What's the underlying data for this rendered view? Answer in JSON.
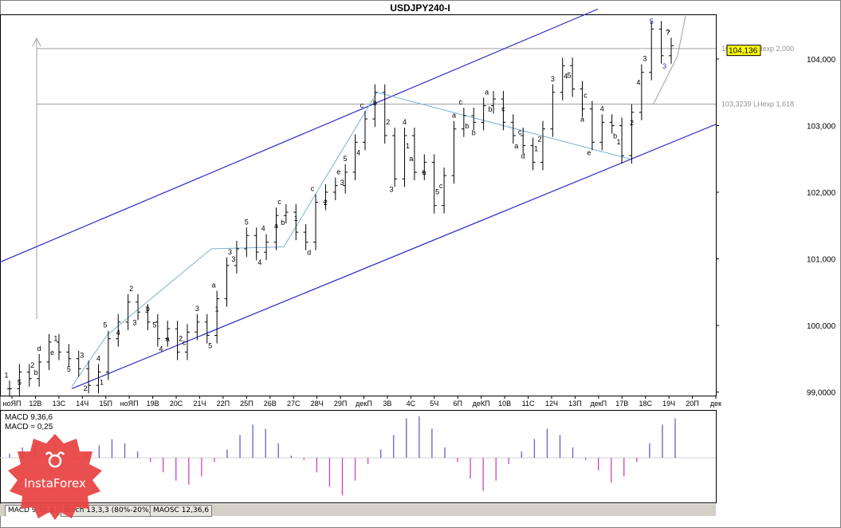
{
  "chart_data": [
    {
      "type": "candlestick",
      "title": "USDJPY240-I",
      "ylim": [
        98.9,
        104.8
      ],
      "y_ticks": [
        "104,000",
        "103,000",
        "102,000",
        "101,000",
        "100,000",
        "99,0000"
      ],
      "current_price": "104,136",
      "x_tick_labels": [
        "ноЯП",
        "12В",
        "13С",
        "14Ч",
        "15П",
        "ноЯП",
        "19В",
        "20С",
        "21Ч",
        "22П",
        "25П",
        "26В",
        "27С",
        "28Ч",
        "29П",
        "декП",
        "3В",
        "4С",
        "5Ч",
        "6П",
        "деКП",
        "10В",
        "11С",
        "12Ч",
        "13П",
        "декП",
        "17В",
        "18С",
        "19Ч",
        "20П",
        "дек"
      ],
      "hlines": [
        {
          "label": "104,1570 LHexp 2,000",
          "value": 104.157
        },
        {
          "label": "103,3239 LHexp 1,618",
          "value": 103.3239
        }
      ],
      "series": [
        {
          "values": [
            99.05,
            99.3,
            99.2,
            99.45,
            99.75,
            99.6,
            99.5,
            99.35,
            99.1,
            99.3,
            99.8,
            100.05,
            100.35,
            100.2,
            100.05,
            99.8,
            99.95,
            99.6,
            99.9,
            100.05,
            99.85,
            100.4,
            100.9,
            101.15,
            101.35,
            101.1,
            101.25,
            101.65,
            101.7,
            101.4,
            101.25,
            101.85,
            102.0,
            102.1,
            102.3,
            102.75,
            103.1,
            103.5,
            102.85,
            102.2,
            102.85,
            102.3,
            102.45,
            101.8,
            102.25,
            102.95,
            103.15,
            103.05,
            103.3,
            103.4,
            103.05,
            102.85,
            102.7,
            102.45,
            102.95,
            103.5,
            103.9,
            103.55,
            103.25,
            102.75,
            103.05,
            103.0,
            102.55,
            103.2,
            103.8,
            104.45,
            104.05,
            104.2
          ]
        }
      ],
      "wave_labels": [
        "1",
        "5",
        "2",
        "b",
        "d",
        "e",
        "1",
        "5",
        "3",
        "2",
        "4",
        "1",
        "5",
        "4",
        "2",
        "3",
        "b",
        "4",
        "5",
        "a",
        "2",
        "c",
        "3",
        "5",
        "a",
        "1",
        "3",
        "3",
        "5",
        "4",
        "4",
        "a",
        "c",
        "b",
        "1",
        "d",
        "c",
        "2",
        "e",
        "3",
        "5",
        "4",
        "c",
        "b",
        "2",
        "3",
        "4",
        "1",
        "a",
        "b",
        "5",
        "c",
        "a",
        "b",
        "c",
        "b",
        "a",
        "b",
        "c",
        "a",
        "c",
        "d",
        "1",
        "2",
        "3",
        "4",
        "5",
        "a",
        "c",
        "e",
        "4",
        "b",
        "1",
        "2",
        "3",
        "4",
        "5",
        "3",
        "?"
      ]
    },
    {
      "type": "bar",
      "title": "",
      "legend": [
        "MACD 9,36,6",
        "MACD = 0,25"
      ],
      "ylim": [
        -1.0,
        1.0
      ],
      "values": [
        0.1,
        0.25,
        0.35,
        0.2,
        0.05,
        -0.05,
        0.1,
        0.3,
        0.45,
        0.35,
        0.15,
        -0.1,
        -0.35,
        -0.55,
        -0.65,
        -0.45,
        -0.1,
        0.2,
        0.55,
        0.8,
        0.7,
        0.35,
        0.05,
        -0.05,
        -0.35,
        -0.7,
        -0.9,
        -0.55,
        -0.15,
        0.2,
        0.55,
        0.95,
        1.0,
        0.7,
        0.25,
        -0.1,
        -0.5,
        -0.8,
        -0.55,
        -0.15,
        0.15,
        0.45,
        0.7,
        0.55,
        0.25,
        -0.05,
        -0.3,
        -0.6,
        -0.45,
        -0.1,
        0.35,
        0.8,
        0.95
      ],
      "tabs": [
        "MACD 9,36,6",
        "Stoch 13,3,3 (80%-20%)",
        "MAOSC 12,36,6"
      ]
    }
  ],
  "logo": {
    "text": "InstaForex"
  }
}
